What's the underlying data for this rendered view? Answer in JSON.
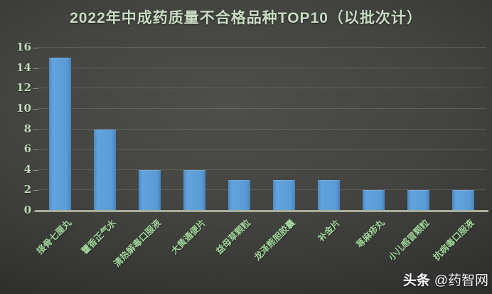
{
  "title": "2022年中成药质量不合格品种TOP10（以批次计）",
  "watermark": {
    "brand": "头条",
    "handle": "@药智网"
  },
  "chart_data": {
    "type": "bar",
    "title": "2022年中成药质量不合格品种TOP10（以批次计）",
    "categories": [
      "接骨七厘丸",
      "藿香正气水",
      "清热解毒口服液",
      "大黄通便片",
      "益母草颗粒",
      "龙泽熊胆胶囊",
      "补金片",
      "荨麻疹丸",
      "小儿感冒颗粒",
      "抗病毒口服液"
    ],
    "values": [
      15,
      8,
      4,
      4,
      3,
      3,
      3,
      2,
      2,
      2
    ],
    "xlabel": "",
    "ylabel": "",
    "ylim": [
      0,
      16
    ],
    "ytick_interval": 2,
    "grid": true,
    "legend": "none",
    "colors": {
      "bar": "#5b9bd5",
      "title": "#c9dcc3",
      "y_tick_label": "#c0dab8",
      "x_tick_label": "#a1d69a",
      "axis_line": "#a9ae9a",
      "background_center": "#4e4e4a",
      "background_edge": "#222220",
      "watermark_text": "#f5f5f5"
    }
  }
}
